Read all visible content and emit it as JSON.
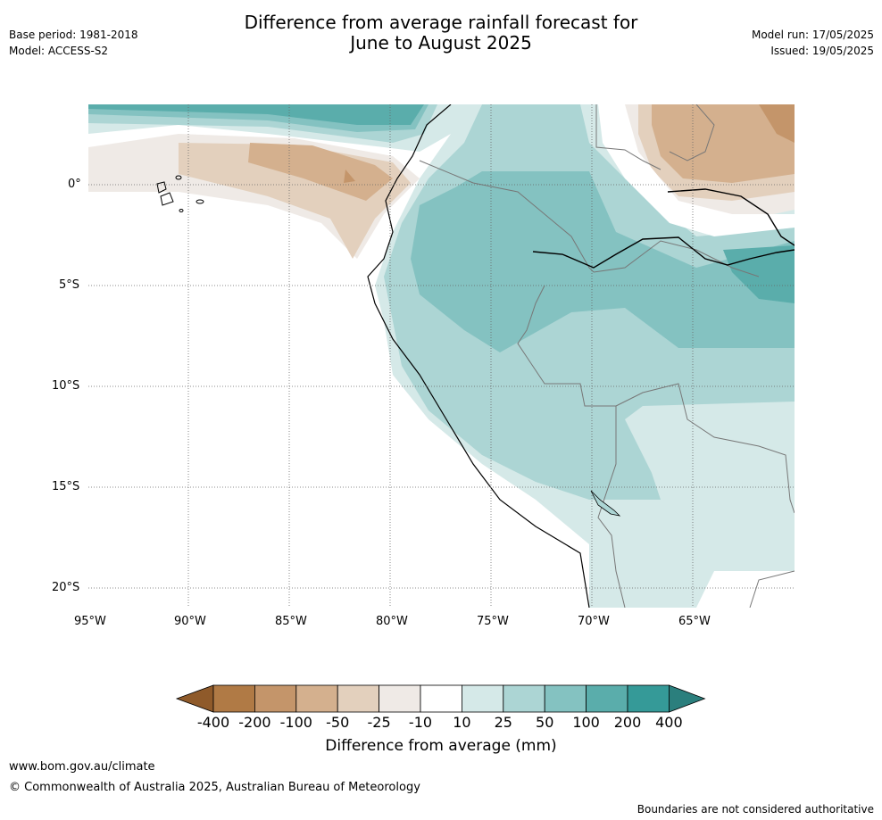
{
  "header": {
    "base_period": "Base period: 1981-2018",
    "model": "Model: ACCESS-S2",
    "title_line1": "Difference from average rainfall forecast for",
    "title_line2": "June to August 2025",
    "model_run": "Model run: 17/05/2025",
    "issued": "Issued: 19/05/2025"
  },
  "map": {
    "lat_labels": [
      "0°",
      "5°S",
      "10°S",
      "15°S",
      "20°S"
    ],
    "lon_labels": [
      "95°W",
      "90°W",
      "85°W",
      "80°W",
      "75°W",
      "70°W",
      "65°W"
    ],
    "grid": "dotted",
    "region": "Western South America (Ecuador, Peru, Bolivia, northern Chile)"
  },
  "colorbar": {
    "title": "Difference from average (mm)",
    "tick_labels": [
      "-400",
      "-200",
      "-100",
      "-50",
      "-25",
      "-10",
      "10",
      "25",
      "50",
      "100",
      "200",
      "400"
    ],
    "colors": [
      "#8f5a2a",
      "#b07a45",
      "#c4956a",
      "#d4b08e",
      "#e3d0bd",
      "#efeae6",
      "#ffffff",
      "#d5e9e8",
      "#acd5d4",
      "#84c2c1",
      "#5aadab",
      "#359a98",
      "#2b7f7d"
    ]
  },
  "footer": {
    "url": "www.bom.gov.au/climate",
    "copyright": "© Commonwealth of Australia 2025, Australian Bureau of Meteorology",
    "disclaimer": "Boundaries are not considered authoritative"
  }
}
